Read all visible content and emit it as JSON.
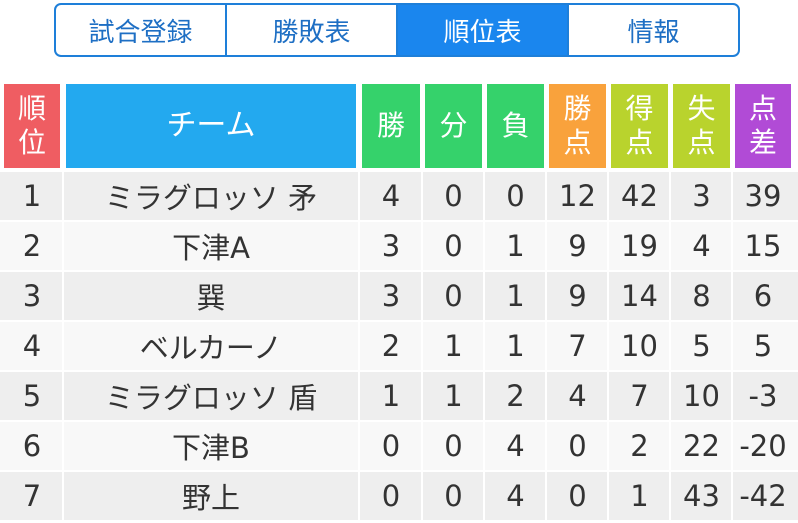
{
  "tabs": [
    {
      "label": "試合登録",
      "active": false
    },
    {
      "label": "勝敗表",
      "active": false
    },
    {
      "label": "順位表",
      "active": true
    },
    {
      "label": "情報",
      "active": false
    }
  ],
  "table": {
    "headers": {
      "rank": [
        "順",
        "位"
      ],
      "team": "チーム",
      "win": "勝",
      "draw": "分",
      "loss": "負",
      "points": [
        "勝",
        "点"
      ],
      "goals_for": [
        "得",
        "点"
      ],
      "goals_against": [
        "失",
        "点"
      ],
      "goal_diff": [
        "点",
        "差"
      ]
    },
    "header_colors": {
      "rank": "#ef5d62",
      "team": "#23a9ef",
      "win": "#35d26b",
      "draw": "#35d26b",
      "loss": "#35d26b",
      "points": "#f9a23c",
      "goals_for": "#b9d32d",
      "goals_against": "#b9d32d",
      "goal_diff": "#b14bd6"
    },
    "rows": [
      {
        "rank": "1",
        "team": "ミラグロッソ 矛",
        "win": "4",
        "draw": "0",
        "loss": "0",
        "points": "12",
        "gf": "42",
        "ga": "3",
        "gd": "39"
      },
      {
        "rank": "2",
        "team": "下津A",
        "win": "3",
        "draw": "0",
        "loss": "1",
        "points": "9",
        "gf": "19",
        "ga": "4",
        "gd": "15"
      },
      {
        "rank": "3",
        "team": "巽",
        "win": "3",
        "draw": "0",
        "loss": "1",
        "points": "9",
        "gf": "14",
        "ga": "8",
        "gd": "6"
      },
      {
        "rank": "4",
        "team": "ベルカーノ",
        "win": "2",
        "draw": "1",
        "loss": "1",
        "points": "7",
        "gf": "10",
        "ga": "5",
        "gd": "5"
      },
      {
        "rank": "5",
        "team": "ミラグロッソ 盾",
        "win": "1",
        "draw": "1",
        "loss": "2",
        "points": "4",
        "gf": "7",
        "ga": "10",
        "gd": "-3"
      },
      {
        "rank": "6",
        "team": "下津B",
        "win": "0",
        "draw": "0",
        "loss": "4",
        "points": "0",
        "gf": "2",
        "ga": "22",
        "gd": "-20"
      },
      {
        "rank": "7",
        "team": "野上",
        "win": "0",
        "draw": "0",
        "loss": "4",
        "points": "0",
        "gf": "1",
        "ga": "43",
        "gd": "-42"
      }
    ]
  }
}
